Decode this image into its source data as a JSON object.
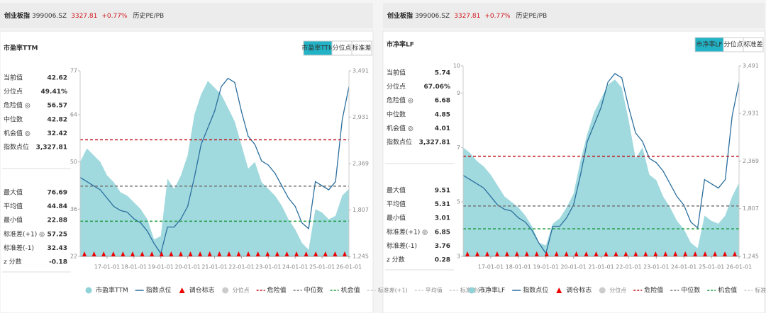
{
  "panels": [
    {
      "header": {
        "name": "创业板指",
        "code": "399006.SZ",
        "price": "3327.81",
        "change": "+0.77%",
        "tab": "历史PE/PB"
      },
      "title": "市盈率TTM",
      "tabs": [
        "市盈率TTM",
        "分位点",
        "标准差"
      ],
      "stats_top": [
        [
          "当前值",
          "42.62"
        ],
        [
          "分位点",
          "49.41%"
        ],
        [
          "危险值 ◎",
          "56.57"
        ],
        [
          "中位数",
          "42.82"
        ],
        [
          "机会值 ◎",
          "32.42"
        ],
        [
          "指数点位",
          "3,327.81"
        ]
      ],
      "stats_bottom": [
        [
          "最大值",
          "76.69"
        ],
        [
          "平均值",
          "44.84"
        ],
        [
          "最小值",
          "22.88"
        ],
        [
          "标准差(+1) ◎",
          "57.25"
        ],
        [
          "标准差(-1)",
          "32.43"
        ],
        [
          "z 分数",
          "-0.18"
        ]
      ]
    },
    {
      "header": {
        "name": "创业板指",
        "code": "399006.SZ",
        "price": "3327.81",
        "change": "+0.77%",
        "tab": "历史PE/PB"
      },
      "title": "市净率LF",
      "tabs": [
        "市净率LF",
        "分位点",
        "标准差"
      ],
      "stats_top": [
        [
          "当前值",
          "5.74"
        ],
        [
          "分位点",
          "67.06%"
        ],
        [
          "危险值 ◎",
          "6.68"
        ],
        [
          "中位数",
          "4.85"
        ],
        [
          "机会值 ◎",
          "4.01"
        ],
        [
          "指数点位",
          "3,327.81"
        ]
      ],
      "stats_bottom": [
        [
          "最大值",
          "9.51"
        ],
        [
          "平均值",
          "5.31"
        ],
        [
          "最小值",
          "3.01"
        ],
        [
          "标准差(+1) ◎",
          "6.85"
        ],
        [
          "标准差(-1)",
          "3.76"
        ],
        [
          "z 分数",
          "0.28"
        ]
      ]
    }
  ],
  "chart_data": [
    {
      "type": "line",
      "x": [
        "16-01-01",
        "16-04-01",
        "16-07-01",
        "16-10-01",
        "17-01-01",
        "17-04-01",
        "17-07-01",
        "17-10-01",
        "18-01-01",
        "18-04-01",
        "18-07-01",
        "18-10-01",
        "19-01-01",
        "19-04-01",
        "19-07-01",
        "19-10-01",
        "20-01-01",
        "20-04-01",
        "20-07-01",
        "20-10-01",
        "21-01-01",
        "21-04-01",
        "21-07-01",
        "21-10-01",
        "22-01-01",
        "22-04-01",
        "22-07-01",
        "22-10-01",
        "23-01-01",
        "23-04-01",
        "23-07-01",
        "23-10-01",
        "24-01-01",
        "24-04-01",
        "24-07-01",
        "24-10-01",
        "25-01-01",
        "25-04-01",
        "25-07-01",
        "25-10-01",
        "26-01-01"
      ],
      "xticks": [
        "17-01-01",
        "18-01-01",
        "19-01-01",
        "20-01-01",
        "21-01-01",
        "22-01-01",
        "23-01-01",
        "24-01-01",
        "25-01-01",
        "26-01-01"
      ],
      "ylim": [
        22,
        77
      ],
      "yticks": [
        22,
        36,
        50,
        64,
        77
      ],
      "y2lim": [
        1245,
        3491
      ],
      "y2ticks": [
        {
          "value": 1245,
          "label": "1,245"
        },
        {
          "value": 1807,
          "label": "1,807"
        },
        {
          "value": 2369,
          "label": "2,369"
        },
        {
          "value": 2931,
          "label": "2,931"
        },
        {
          "value": 3491,
          "label": "3,491"
        }
      ],
      "series": [
        {
          "name": "市盈率TTM",
          "style": "area",
          "color": "#8fd2d8",
          "values": [
            50,
            54,
            52,
            50,
            46,
            44,
            41,
            40,
            38,
            36,
            33,
            27,
            28,
            45,
            42,
            46,
            52,
            64,
            70,
            74,
            72,
            70,
            66,
            62,
            55,
            48,
            50,
            44,
            42,
            40,
            37,
            33,
            30,
            26,
            24,
            36,
            35,
            33,
            34,
            40,
            42
          ]
        },
        {
          "name": "指数点位",
          "style": "line",
          "axis": "y2",
          "color": "#2b6f9e",
          "values": [
            2200,
            2150,
            2100,
            2050,
            1950,
            1850,
            1800,
            1780,
            1700,
            1650,
            1550,
            1400,
            1280,
            1600,
            1600,
            1700,
            1850,
            2200,
            2600,
            2800,
            3000,
            3300,
            3400,
            3350,
            3000,
            2700,
            2600,
            2400,
            2350,
            2250,
            2100,
            1950,
            1850,
            1650,
            1580,
            2150,
            2100,
            2050,
            2150,
            2900,
            3300
          ]
        }
      ],
      "reference_lines": [
        {
          "name": "危险值",
          "value": 56.57,
          "color": "#c0141b"
        },
        {
          "name": "中位数",
          "value": 42.82,
          "color": "#777777"
        },
        {
          "name": "机会值",
          "value": 32.42,
          "color": "#1a9a3c"
        }
      ],
      "marker_legend": "调仓标志",
      "inactive_legend": [
        "分位点",
        "标准差(+1)",
        "平均值",
        "标准差(-1)"
      ]
    },
    {
      "type": "line",
      "x": [
        "16-01-01",
        "16-04-01",
        "16-07-01",
        "16-10-01",
        "17-01-01",
        "17-04-01",
        "17-07-01",
        "17-10-01",
        "18-01-01",
        "18-04-01",
        "18-07-01",
        "18-10-01",
        "19-01-01",
        "19-04-01",
        "19-07-01",
        "19-10-01",
        "20-01-01",
        "20-04-01",
        "20-07-01",
        "20-10-01",
        "21-01-01",
        "21-04-01",
        "21-07-01",
        "21-10-01",
        "22-01-01",
        "22-04-01",
        "22-07-01",
        "22-10-01",
        "23-01-01",
        "23-04-01",
        "23-07-01",
        "23-10-01",
        "24-01-01",
        "24-04-01",
        "24-07-01",
        "24-10-01",
        "25-01-01",
        "25-04-01",
        "25-07-01",
        "25-10-01",
        "26-01-01"
      ],
      "xticks": [
        "17-01-01",
        "18-01-01",
        "19-01-01",
        "20-01-01",
        "21-01-01",
        "22-01-01",
        "23-01-01",
        "24-01-01",
        "25-01-01",
        "26-01-01"
      ],
      "ylim": [
        3,
        10
      ],
      "yticks": [
        3,
        5,
        7,
        9,
        10
      ],
      "y2lim": [
        1245,
        3491
      ],
      "y2ticks": [
        {
          "value": 1245,
          "label": "1,245"
        },
        {
          "value": 1807,
          "label": "1,807"
        },
        {
          "value": 2369,
          "label": "2,369"
        },
        {
          "value": 2931,
          "label": "2,931"
        },
        {
          "value": 3491,
          "label": "3,491"
        }
      ],
      "series": [
        {
          "name": "市净率LF",
          "style": "area",
          "color": "#8fd2d8",
          "values": [
            7.0,
            6.8,
            6.5,
            6.3,
            6.0,
            5.6,
            5.2,
            5.0,
            4.8,
            4.5,
            4.1,
            3.5,
            3.4,
            4.2,
            4.4,
            4.8,
            5.3,
            6.5,
            7.5,
            8.3,
            8.8,
            9.3,
            9.5,
            9.2,
            8.0,
            6.6,
            7.0,
            6.0,
            5.8,
            5.2,
            4.8,
            4.3,
            4.0,
            3.5,
            3.3,
            4.5,
            4.3,
            4.2,
            4.5,
            5.2,
            5.7
          ]
        },
        {
          "name": "指数点位",
          "style": "line",
          "axis": "y2",
          "color": "#2b6f9e",
          "values": [
            2200,
            2150,
            2100,
            2050,
            1950,
            1850,
            1800,
            1780,
            1700,
            1650,
            1550,
            1400,
            1280,
            1600,
            1600,
            1700,
            1850,
            2200,
            2600,
            2800,
            3000,
            3300,
            3400,
            3350,
            3000,
            2700,
            2600,
            2400,
            2350,
            2250,
            2100,
            1950,
            1850,
            1650,
            1580,
            2150,
            2100,
            2050,
            2150,
            2900,
            3300
          ]
        }
      ],
      "reference_lines": [
        {
          "name": "危险值",
          "value": 6.68,
          "color": "#c0141b"
        },
        {
          "name": "中位数",
          "value": 4.85,
          "color": "#777777"
        },
        {
          "name": "机会值",
          "value": 4.01,
          "color": "#1a9a3c"
        }
      ],
      "marker_legend": "调仓标志",
      "inactive_legend": [
        "分位点",
        "标准差(+1)",
        "平均值",
        "标准差(-1)"
      ]
    }
  ]
}
